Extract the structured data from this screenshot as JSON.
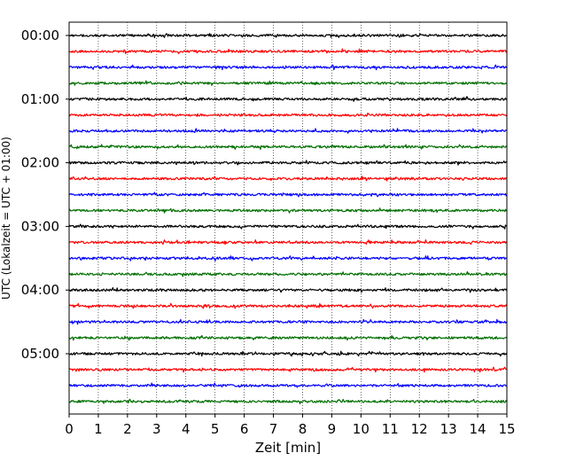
{
  "chart_data": {
    "type": "line",
    "plot_kind": "helicorder",
    "xlabel": "Zeit  [min]",
    "ylabel": "UTC (Lokalzeit = UTC + 01:00)",
    "xlim": [
      0,
      15
    ],
    "x_ticks": [
      "0",
      "1",
      "2",
      "3",
      "4",
      "5",
      "6",
      "7",
      "8",
      "9",
      "10",
      "11",
      "12",
      "13",
      "14",
      "15"
    ],
    "y_tick_labels": [
      "00:00",
      "01:00",
      "02:00",
      "03:00",
      "04:00",
      "05:00"
    ],
    "trace_minutes": 15,
    "trace_count": 24,
    "trace_colors": [
      "#000000",
      "#ff0000",
      "#0000ff",
      "#007000"
    ],
    "vertical_grid": "dotted",
    "series": [
      {
        "start": "00:00"
      },
      {
        "start": "00:15"
      },
      {
        "start": "00:30"
      },
      {
        "start": "00:45"
      },
      {
        "start": "01:00"
      },
      {
        "start": "01:15"
      },
      {
        "start": "01:30"
      },
      {
        "start": "01:45"
      },
      {
        "start": "02:00"
      },
      {
        "start": "02:15"
      },
      {
        "start": "02:30"
      },
      {
        "start": "02:45"
      },
      {
        "start": "03:00"
      },
      {
        "start": "03:15"
      },
      {
        "start": "03:30"
      },
      {
        "start": "03:45"
      },
      {
        "start": "04:00"
      },
      {
        "start": "04:15"
      },
      {
        "start": "04:30"
      },
      {
        "start": "04:45"
      },
      {
        "start": "05:00"
      },
      {
        "start": "05:15"
      },
      {
        "start": "05:30"
      },
      {
        "start": "05:45"
      }
    ]
  }
}
